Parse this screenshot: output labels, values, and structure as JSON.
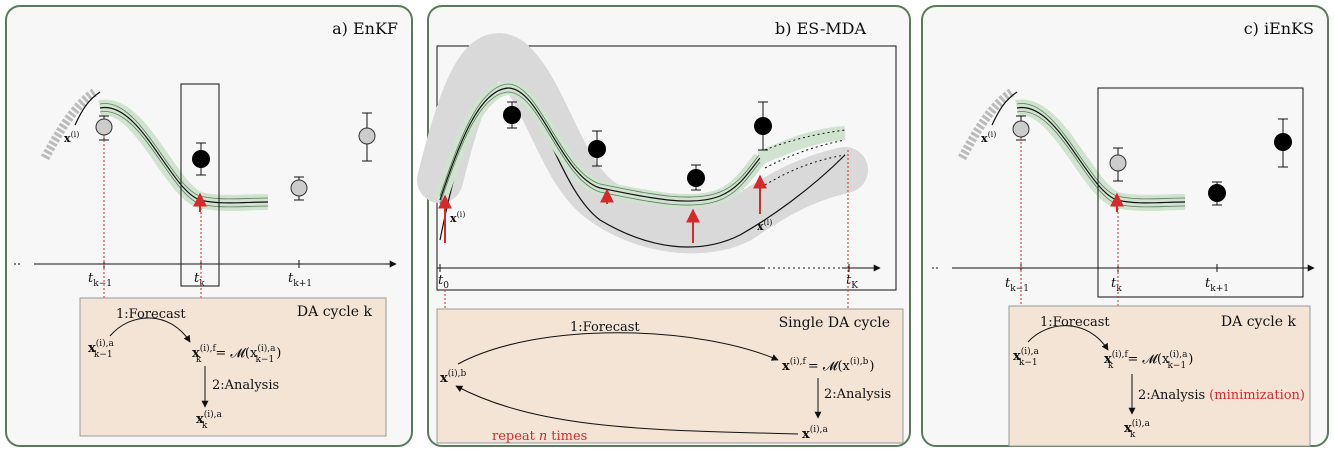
{
  "colors": {
    "panel_border": "#5b7a5b",
    "panel_bg": "#f7f7f7",
    "da_box": "#f3e4d6",
    "green_band": "#cfe3cf",
    "gray_band": "#d9d9d9",
    "red": "#d62a2a",
    "obs_black": "#000000",
    "obs_gray": "#cccccc"
  },
  "panels": [
    {
      "title": "a) EnKF",
      "ensemble_label": "x",
      "ensemble_sup": "(i)",
      "axis": {
        "ticks": [
          {
            "main": "t",
            "sub": "k−1"
          },
          {
            "main": "t",
            "sub": "k"
          },
          {
            "main": "t",
            "sub": "k+1"
          }
        ]
      },
      "da_box": {
        "title": "DA cycle k",
        "step1": "1:Forecast",
        "step2": "2:Analysis",
        "prev_state": "x",
        "prev_sup": "(i),a",
        "prev_sub": "k−1",
        "forecast_lhs_sup": "(i),f",
        "forecast_lhs_sub": "k",
        "forecast_rhs": "= 𝓜(x",
        "forecast_rhs_sup": "(i),a",
        "forecast_rhs_sub": "k−1",
        "forecast_close": ")",
        "analysis_sup": "(i),a",
        "analysis_sub": "k"
      }
    },
    {
      "title": "b) ES-MDA",
      "ensemble_label": "x",
      "ensemble_sup": "(i)",
      "ensemble_label2": "x",
      "ensemble_sup2": "(i)",
      "axis": {
        "ticks": [
          {
            "main": "t",
            "sub": "0"
          },
          {
            "main": "t",
            "sub": "K"
          }
        ]
      },
      "da_box": {
        "title": "Single DA cycle",
        "step1": "1:Forecast",
        "step2": "2:Analysis",
        "repeat": "repeat",
        "repeat_n": "n",
        "repeat_tail": "times",
        "prior_sup": "(i),b",
        "forecast_sup": "(i),f",
        "forecast_rhs": "= 𝓜(x",
        "forecast_rhs_sup": "(i),b",
        "forecast_close": ")",
        "analysis_sup": "(i),a"
      }
    },
    {
      "title": "c) iEnKS",
      "ensemble_label": "x",
      "ensemble_sup": "(i)",
      "axis": {
        "ticks": [
          {
            "main": "t",
            "sub": "k−1"
          },
          {
            "main": "t",
            "sub": "k"
          },
          {
            "main": "t",
            "sub": "k+1"
          }
        ]
      },
      "da_box": {
        "title": "DA cycle k",
        "step1": "1:Forecast",
        "step2": "2:Analysis",
        "minimization": "(minimization)",
        "prev_state": "x",
        "prev_sup": "(i),a",
        "prev_sub": "k−1",
        "forecast_lhs_sup": "(i),f",
        "forecast_lhs_sub": "k",
        "forecast_rhs": "= 𝓜(x",
        "forecast_rhs_sup": "(i),a",
        "forecast_rhs_sub": "k−1",
        "forecast_close": ")",
        "analysis_sup": "(i),a",
        "analysis_sub": "k"
      }
    }
  ]
}
